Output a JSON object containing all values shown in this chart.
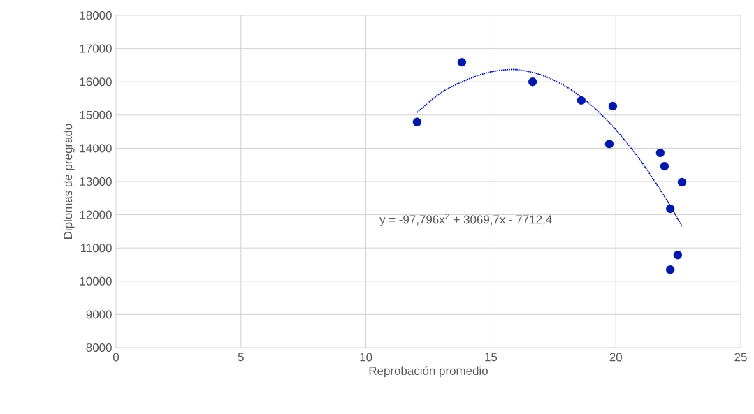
{
  "chart_data": {
    "type": "scatter",
    "xlabel": "Reprobación promedio",
    "ylabel": "Diplomas de pregrado",
    "xlim": [
      0,
      25
    ],
    "xticks": [
      0,
      5,
      10,
      15,
      20,
      25
    ],
    "ylim": [
      8000,
      18000
    ],
    "yticks": [
      8000,
      9000,
      10000,
      11000,
      12000,
      13000,
      14000,
      15000,
      16000,
      17000,
      18000
    ],
    "grid": true,
    "marker": "circle",
    "series": [
      {
        "color": "#0019a8",
        "x": [
          12.05,
          13.84,
          16.67,
          18.62,
          19.88,
          19.74,
          21.78,
          21.95,
          22.65,
          22.18,
          22.48,
          22.18
        ],
        "values": [
          14790,
          16590,
          16000,
          15440,
          15270,
          14130,
          13860,
          13460,
          12980,
          12180,
          10790,
          10350
        ]
      },
      {
        "type": "line",
        "color": "#0019a8",
        "marker": "none",
        "line_style": "dotted",
        "x": [
          12.05,
          13,
          14,
          15,
          16,
          17,
          18,
          19,
          20,
          21,
          22,
          22.65
        ],
        "values": [
          15080,
          15670,
          16050,
          16300,
          16370,
          16210,
          15860,
          15310,
          14560,
          13620,
          12490,
          11650
        ]
      }
    ],
    "annotations": [
      "y = -97,796x$^{2}$ + 3069,7x - 7712,4"
    ]
  }
}
